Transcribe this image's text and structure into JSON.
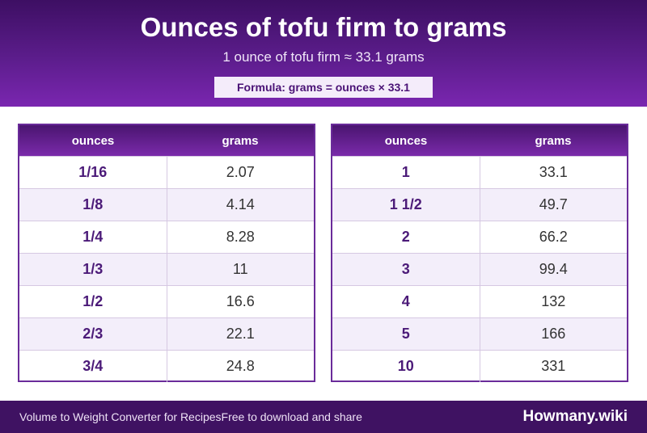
{
  "header": {
    "title": "Ounces of tofu firm to grams",
    "subtitle": "1 ounce of tofu firm ≈ 33.1 grams",
    "formula": "Formula: grams = ounces × 33.1"
  },
  "tables": {
    "columns": {
      "ounces": "ounces",
      "grams": "grams"
    },
    "left": [
      {
        "ounces": "1/16",
        "grams": "2.07"
      },
      {
        "ounces": "1/8",
        "grams": "4.14"
      },
      {
        "ounces": "1/4",
        "grams": "8.28"
      },
      {
        "ounces": "1/3",
        "grams": "11"
      },
      {
        "ounces": "1/2",
        "grams": "16.6"
      },
      {
        "ounces": "2/3",
        "grams": "22.1"
      },
      {
        "ounces": "3/4",
        "grams": "24.8"
      }
    ],
    "right": [
      {
        "ounces": "1",
        "grams": "33.1"
      },
      {
        "ounces": "1 1/2",
        "grams": "49.7"
      },
      {
        "ounces": "2",
        "grams": "66.2"
      },
      {
        "ounces": "3",
        "grams": "99.4"
      },
      {
        "ounces": "4",
        "grams": "132"
      },
      {
        "ounces": "5",
        "grams": "166"
      },
      {
        "ounces": "10",
        "grams": "331"
      }
    ]
  },
  "footer": {
    "left_text": "Volume to Weight Converter for Recipes",
    "middle_text": "Free to download and share",
    "brand": "Howmany.wiki"
  }
}
